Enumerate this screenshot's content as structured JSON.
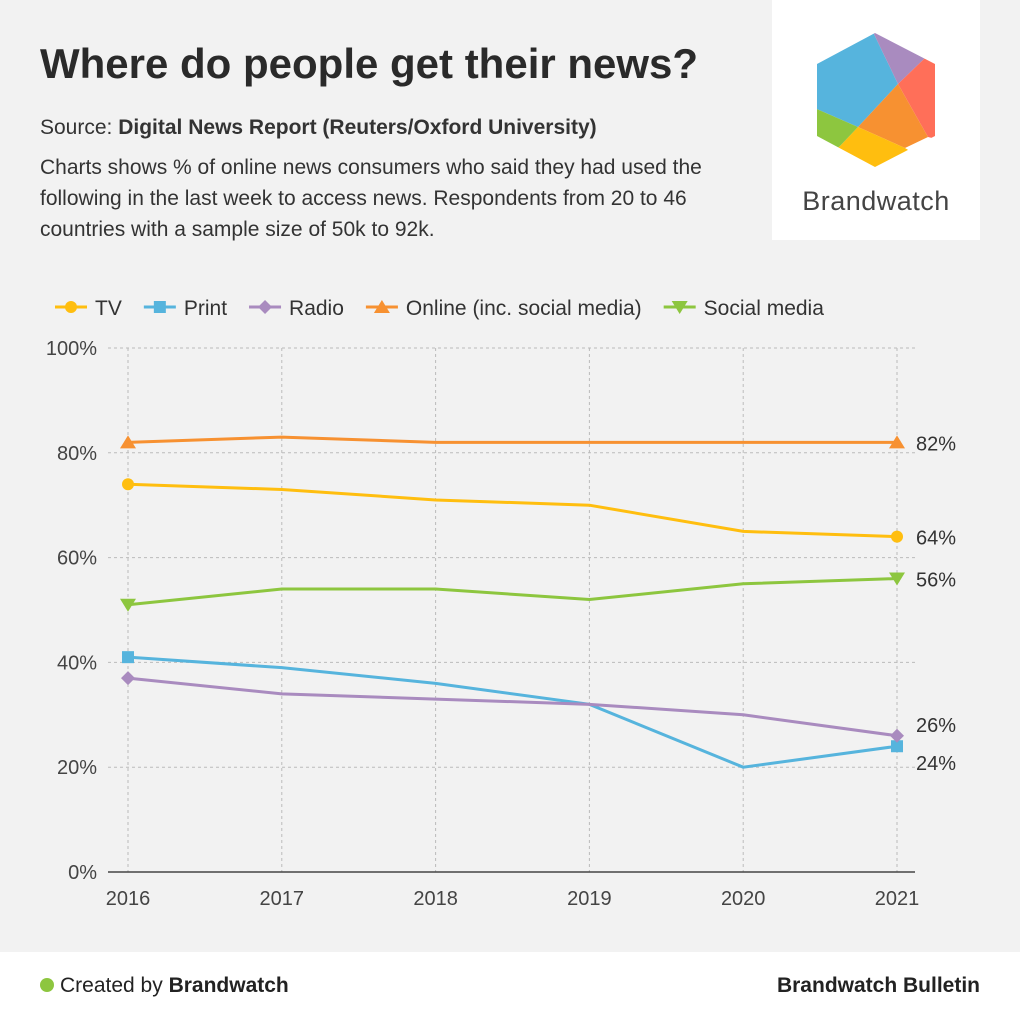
{
  "header": {
    "title": "Where do people get their news?",
    "source_prefix": "Source: ",
    "source_name": "Digital News Report (Reuters/Oxford University)",
    "description": "Charts shows % of online news consumers who said they had used the following in the last week to access news. Respondents from 20 to 46 countries with a sample size of 50k to 92k."
  },
  "logo": {
    "text": "Brandwatch",
    "colors": [
      "#56b4dd",
      "#a98bbf",
      "#ff6f59",
      "#f79131",
      "#ffbe0f",
      "#8dc63f"
    ]
  },
  "chart_data": {
    "type": "line",
    "x": [
      "2016",
      "2017",
      "2018",
      "2019",
      "2020",
      "2021"
    ],
    "ylim": [
      0,
      100
    ],
    "yticks": [
      "0%",
      "20%",
      "40%",
      "60%",
      "80%",
      "100%"
    ],
    "grid": true,
    "legend_placement": "top",
    "series": [
      {
        "name": "TV",
        "color": "#ffbe0f",
        "marker": "circle",
        "values": [
          74,
          73,
          71,
          70,
          65,
          64
        ],
        "end_label": "64%"
      },
      {
        "name": "Print",
        "color": "#56b4dd",
        "marker": "square",
        "values": [
          41,
          39,
          36,
          32,
          20,
          24
        ],
        "end_label": "24%"
      },
      {
        "name": "Radio",
        "color": "#a98bbf",
        "marker": "diamond",
        "values": [
          37,
          34,
          33,
          32,
          30,
          26
        ],
        "end_label": "26%"
      },
      {
        "name": "Online (inc. social media)",
        "color": "#f79131",
        "marker": "triangle-up",
        "values": [
          82,
          83,
          82,
          82,
          82,
          82
        ],
        "end_label": "82%"
      },
      {
        "name": "Social media",
        "color": "#8dc63f",
        "marker": "triangle-down",
        "values": [
          51,
          54,
          54,
          52,
          55,
          56
        ],
        "end_label": "56%"
      }
    ]
  },
  "footer": {
    "created_by": "Created by ",
    "brand": "Brandwatch",
    "right": "Brandwatch Bulletin"
  }
}
